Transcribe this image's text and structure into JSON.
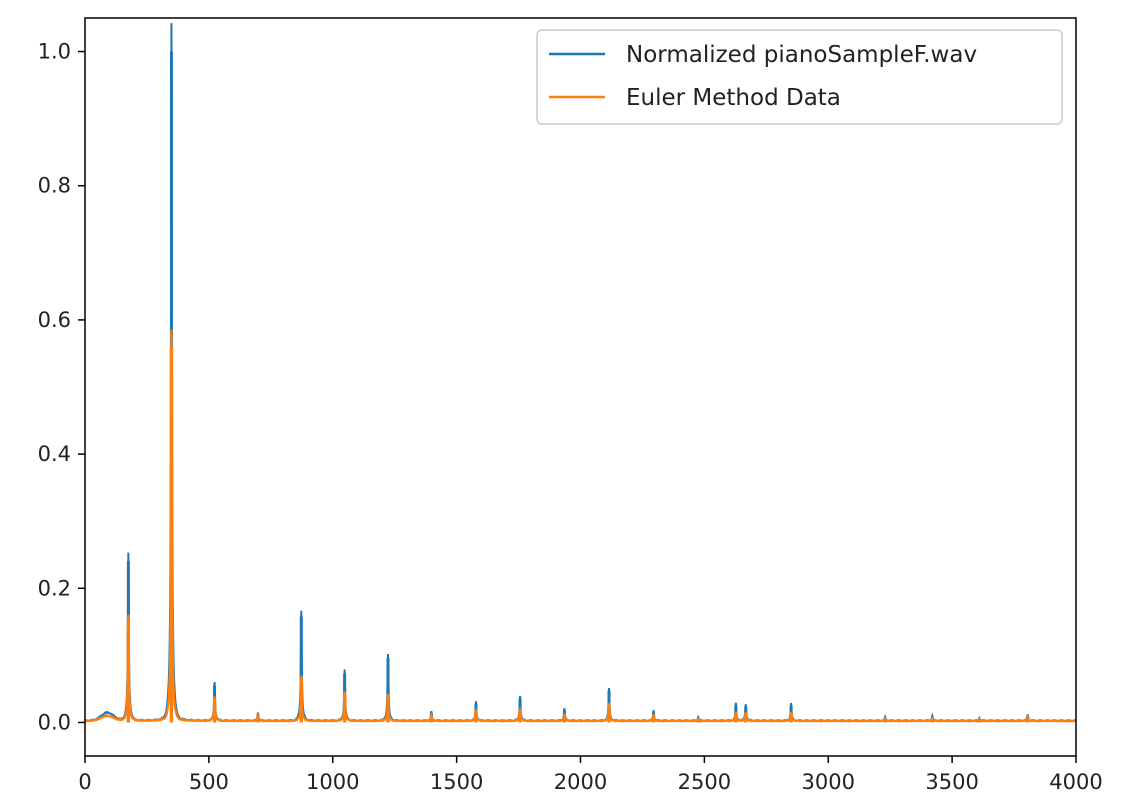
{
  "chart_data": {
    "type": "line",
    "title": "",
    "xlabel": "",
    "ylabel": "",
    "xlim": [
      0,
      4000
    ],
    "ylim": [
      -0.05,
      1.05
    ],
    "xticks": [
      0,
      500,
      1000,
      1500,
      2000,
      2500,
      3000,
      3500,
      4000
    ],
    "yticks": [
      0.0,
      0.2,
      0.4,
      0.6,
      0.8,
      1.0
    ],
    "xtick_labels": [
      "0",
      "500",
      "1000",
      "1500",
      "2000",
      "2500",
      "3000",
      "3500",
      "4000"
    ],
    "ytick_labels": [
      "0.0",
      "0.2",
      "0.4",
      "0.6",
      "0.8",
      "1.0"
    ],
    "grid": false,
    "legend_position": "top-right",
    "series": [
      {
        "name": "Normalized pianoSampleF.wav",
        "color": "#1f77b4",
        "peaks": [
          {
            "x": 175,
            "y": 0.24
          },
          {
            "x": 349,
            "y": 1.0
          },
          {
            "x": 523,
            "y": 0.055
          },
          {
            "x": 698,
            "y": 0.012
          },
          {
            "x": 873,
            "y": 0.158
          },
          {
            "x": 1048,
            "y": 0.073
          },
          {
            "x": 1223,
            "y": 0.096
          },
          {
            "x": 1398,
            "y": 0.013
          },
          {
            "x": 1578,
            "y": 0.028
          },
          {
            "x": 1756,
            "y": 0.036
          },
          {
            "x": 1935,
            "y": 0.018
          },
          {
            "x": 2115,
            "y": 0.047
          },
          {
            "x": 2295,
            "y": 0.015
          },
          {
            "x": 2475,
            "y": 0.005
          },
          {
            "x": 2627,
            "y": 0.025
          },
          {
            "x": 2667,
            "y": 0.024
          },
          {
            "x": 2850,
            "y": 0.025
          },
          {
            "x": 3230,
            "y": 0.005
          },
          {
            "x": 3420,
            "y": 0.007
          },
          {
            "x": 3610,
            "y": 0.004
          },
          {
            "x": 3805,
            "y": 0.009
          }
        ]
      },
      {
        "name": "Euler Method Data",
        "color": "#ff7f0e",
        "peaks": [
          {
            "x": 175,
            "y": 0.152
          },
          {
            "x": 349,
            "y": 0.56
          },
          {
            "x": 523,
            "y": 0.035
          },
          {
            "x": 698,
            "y": 0.008
          },
          {
            "x": 873,
            "y": 0.065
          },
          {
            "x": 1048,
            "y": 0.042
          },
          {
            "x": 1223,
            "y": 0.038
          },
          {
            "x": 1398,
            "y": 0.008
          },
          {
            "x": 1578,
            "y": 0.016
          },
          {
            "x": 1756,
            "y": 0.018
          },
          {
            "x": 1935,
            "y": 0.01
          },
          {
            "x": 2115,
            "y": 0.024
          },
          {
            "x": 2295,
            "y": 0.009
          },
          {
            "x": 2475,
            "y": 0.003
          },
          {
            "x": 2627,
            "y": 0.012
          },
          {
            "x": 2667,
            "y": 0.012
          },
          {
            "x": 2850,
            "y": 0.013
          },
          {
            "x": 3230,
            "y": 0.003
          },
          {
            "x": 3420,
            "y": 0.004
          },
          {
            "x": 3610,
            "y": 0.002
          },
          {
            "x": 3805,
            "y": 0.005
          }
        ]
      }
    ]
  }
}
